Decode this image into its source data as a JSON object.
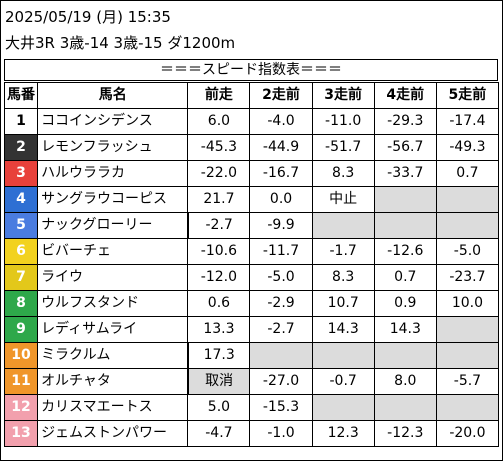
{
  "header": {
    "datetime": "2025/05/19 (月) 15:35",
    "race_info": "大井3R 3歳-14 3歳-15 ダ1200m"
  },
  "banner": "＝＝＝スピード指数表＝＝＝",
  "columns": [
    "馬番",
    "馬名",
    "前走",
    "2走前",
    "3走前",
    "4走前",
    "5走前"
  ],
  "rows": [
    {
      "no": "1",
      "name": "ココインシデンス",
      "vals": [
        "6.0",
        "-4.0",
        "-11.0",
        "-29.3",
        "-17.4"
      ],
      "bg": "#ffffff",
      "fg": "#000000"
    },
    {
      "no": "2",
      "name": "レモンフラッシュ",
      "vals": [
        "-45.3",
        "-44.9",
        "-51.7",
        "-56.7",
        "-49.3"
      ],
      "bg": "#333333",
      "fg": "#ffffff"
    },
    {
      "no": "3",
      "name": "ハルウララカ",
      "vals": [
        "-22.0",
        "-16.7",
        "8.3",
        "-33.7",
        "0.7"
      ],
      "bg": "#e8413b",
      "fg": "#ffffff"
    },
    {
      "no": "4",
      "name": "サングラウコーピス",
      "vals": [
        "21.7",
        "0.0",
        "中止",
        "",
        ""
      ],
      "bg": "#2e6fd3",
      "fg": "#ffffff"
    },
    {
      "no": "5",
      "name": "ナックグローリー",
      "vals": [
        "-2.7",
        "-9.9",
        "",
        "",
        ""
      ],
      "bg": "#4a7ce0",
      "fg": "#ffffff"
    },
    {
      "no": "6",
      "name": "ビバーチェ",
      "vals": [
        "-10.6",
        "-11.7",
        "-1.7",
        "-12.6",
        "-5.0"
      ],
      "bg": "#f2d21f",
      "fg": "#ffffff"
    },
    {
      "no": "7",
      "name": "ライウ",
      "vals": [
        "-12.0",
        "-5.0",
        "8.3",
        "0.7",
        "-23.7"
      ],
      "bg": "#e3c81a",
      "fg": "#ffffff"
    },
    {
      "no": "8",
      "name": "ウルフスタンド",
      "vals": [
        "0.6",
        "-2.9",
        "10.7",
        "0.9",
        "10.0"
      ],
      "bg": "#2ea84a",
      "fg": "#ffffff"
    },
    {
      "no": "9",
      "name": "レディサムライ",
      "vals": [
        "13.3",
        "-2.7",
        "14.3",
        "14.3",
        ""
      ],
      "bg": "#2ea84a",
      "fg": "#ffffff"
    },
    {
      "no": "10",
      "name": "ミラクルム",
      "vals": [
        "17.3",
        "",
        "",
        "",
        ""
      ],
      "bg": "#f0962a",
      "fg": "#ffffff"
    },
    {
      "no": "11",
      "name": "オルチャタ",
      "vals": [
        "取消",
        "-27.0",
        "-0.7",
        "8.0",
        "-5.7"
      ],
      "bg": "#f0962a",
      "fg": "#ffffff"
    },
    {
      "no": "12",
      "name": "カリスマエートス",
      "vals": [
        "5.0",
        "-15.3",
        "",
        "",
        ""
      ],
      "bg": "#f2a0ad",
      "fg": "#ffffff"
    },
    {
      "no": "13",
      "name": "ジェムストンパワー",
      "vals": [
        "-4.7",
        "-1.0",
        "12.3",
        "-12.3",
        "-20.0"
      ],
      "bg": "#f2a0ad",
      "fg": "#ffffff"
    }
  ]
}
